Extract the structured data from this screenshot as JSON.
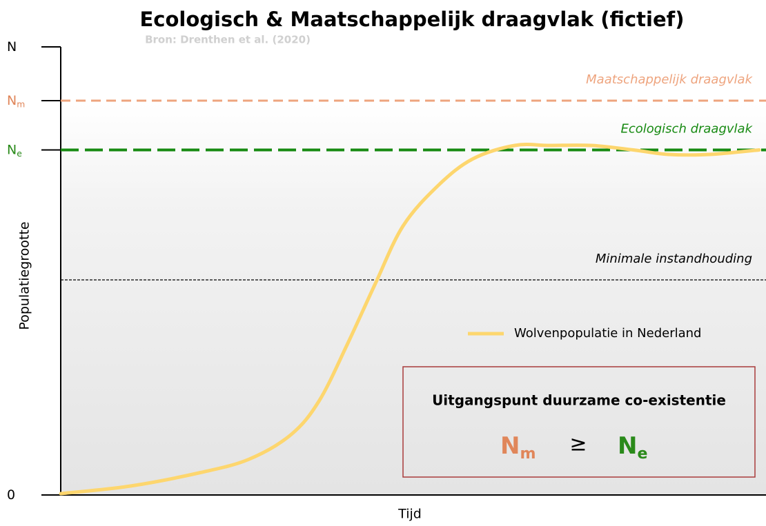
{
  "chart_data": {
    "type": "line",
    "title": "Ecologisch & Maatschappelijk draagvlak (fictief)",
    "subtitle": "Bron: Drenthen et al. (2020)",
    "y_label": "Populatiegrootte",
    "x_label": "Tijd",
    "xlim": [
      0,
      100
    ],
    "ylim": [
      0,
      100
    ],
    "yticks": [
      {
        "value": 0,
        "label": "0",
        "color": "#000000"
      },
      {
        "value": 77,
        "label": "N",
        "subscript": "e",
        "color": "#2a8a1a"
      },
      {
        "value": 88,
        "label": "N",
        "subscript": "m",
        "color": "#e0865a"
      },
      {
        "value": 100,
        "label": "N",
        "color": "#000000"
      }
    ],
    "reference_lines": [
      {
        "label": "Maatschappelijk draagvlak",
        "value": 88,
        "color": "#eea47e",
        "dash": "14 8",
        "width": 3
      },
      {
        "label": "Ecologisch draagvlak",
        "value": 77,
        "color": "#178a12",
        "dash": "26 9",
        "width": 4
      },
      {
        "label": "Minimale instandhouding",
        "value": 48,
        "color": "#000000",
        "dash": "4 2",
        "width": 1.2
      }
    ],
    "series": [
      {
        "name": "Wolvenpopulatie in Nederland",
        "color": "#fdd66e",
        "x": [
          0,
          10,
          20,
          27,
          33,
          37,
          41,
          45,
          49,
          54,
          59,
          65,
          70,
          76,
          82,
          87,
          93,
          100
        ],
        "values": [
          0.3,
          2,
          5,
          8,
          13.5,
          21,
          33.5,
          47,
          60,
          69,
          75,
          78,
          78,
          78,
          77,
          76,
          76,
          77
        ]
      }
    ],
    "box": {
      "title": "Uitgangspunt duurzame co-existentie",
      "left": {
        "label": "N",
        "subscript": "m",
        "color": "#e0865a"
      },
      "operator": "≥",
      "right": {
        "label": "N",
        "subscript": "e",
        "color": "#2a8a1a"
      },
      "border": "#a83a3a"
    }
  }
}
